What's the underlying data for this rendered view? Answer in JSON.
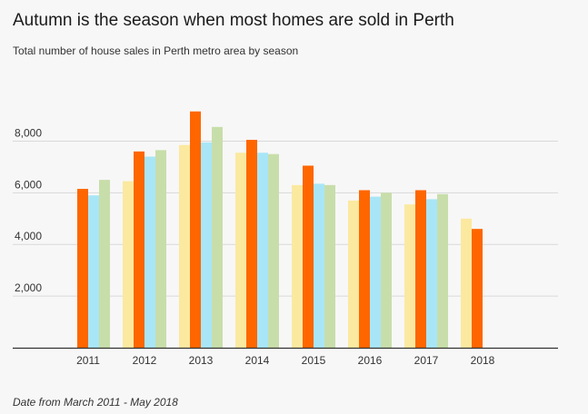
{
  "title": "Autumn is the season when most homes are sold in Perth",
  "subtitle": "Total number of house sales in Perth metro area by season",
  "note": "Date from March 2011 - May 2018",
  "chart_data": {
    "type": "bar",
    "categories": [
      "2011",
      "2012",
      "2013",
      "2014",
      "2015",
      "2016",
      "2017",
      "2018"
    ],
    "series": [
      {
        "color": "#fbe9a0",
        "values": [
          null,
          6450,
          7850,
          7550,
          6300,
          5700,
          5550,
          5000
        ]
      },
      {
        "color": "#ff6600",
        "values": [
          6150,
          7600,
          9150,
          8050,
          7050,
          6100,
          6100,
          4600
        ]
      },
      {
        "color": "#a8e6f7",
        "values": [
          5900,
          7400,
          7950,
          7550,
          6350,
          5850,
          5750,
          null
        ]
      },
      {
        "color": "#c8deaa",
        "values": [
          6500,
          7650,
          8550,
          7500,
          6300,
          6000,
          5950,
          null
        ]
      }
    ],
    "yticks": [
      2000,
      4000,
      6000,
      8000
    ],
    "ytick_labels": [
      "2,000",
      "4,000",
      "6,000",
      "8,000"
    ],
    "ylim": [
      0,
      9200
    ],
    "grid": true
  }
}
